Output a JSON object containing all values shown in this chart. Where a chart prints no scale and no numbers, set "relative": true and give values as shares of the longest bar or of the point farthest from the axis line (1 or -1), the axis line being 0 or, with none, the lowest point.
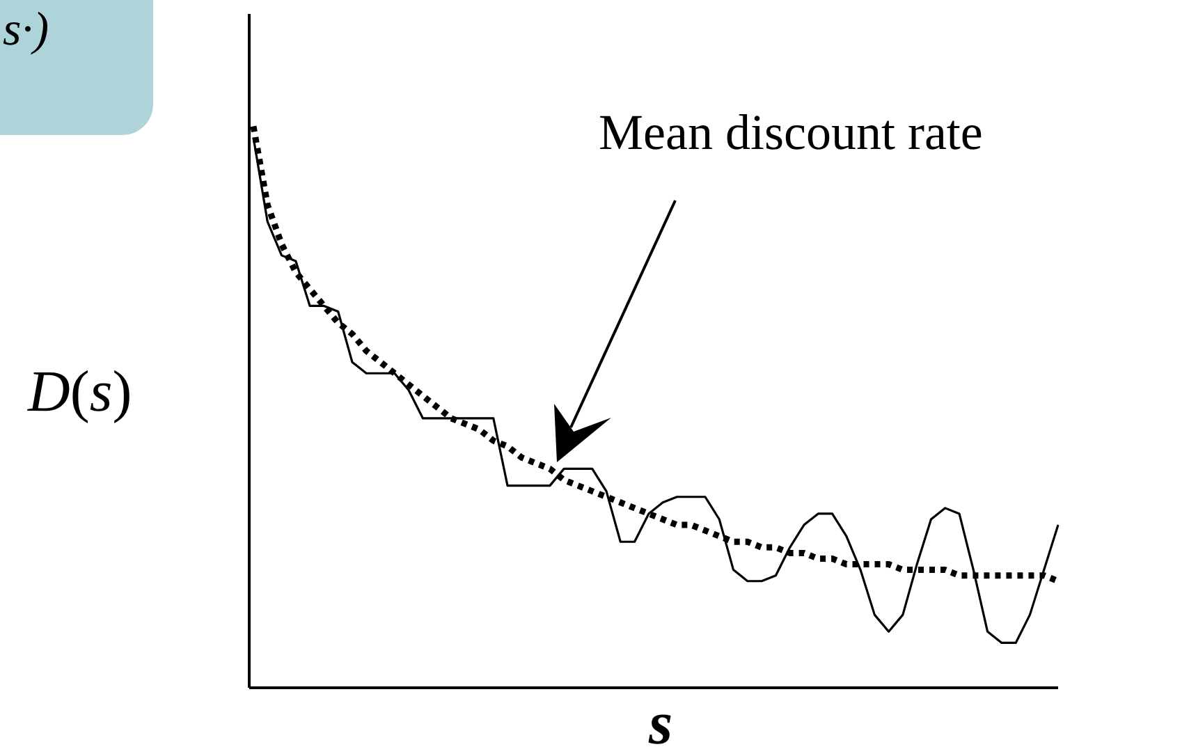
{
  "chart_data": {
    "type": "line",
    "relative": true,
    "xlabel": "s",
    "ylabel": "D(s)",
    "marker": "none",
    "legend": false,
    "grid": false,
    "tick_labels": false,
    "annotations": [
      "Mean discount rate",
      "s·)"
    ],
    "categories": [
      null,
      null,
      null,
      null,
      null,
      null,
      null,
      null,
      null,
      null,
      null,
      null,
      null,
      null,
      null,
      null,
      null,
      null,
      null,
      null,
      null,
      null,
      null,
      null,
      null,
      null,
      null,
      null,
      null,
      null,
      null,
      null,
      null,
      null,
      null,
      null,
      null,
      null,
      null,
      null,
      null,
      null,
      null,
      null,
      null,
      null,
      null,
      null,
      null,
      null,
      null,
      null,
      null,
      null,
      null,
      null,
      null,
      null
    ],
    "series": [
      {
        "color": "#000000",
        "line_style": "solid",
        "values": [
          0.98,
          0.83,
          0.77,
          0.76,
          0.68,
          0.68,
          0.67,
          0.58,
          0.56,
          0.56,
          0.56,
          0.53,
          0.48,
          0.48,
          0.48,
          0.48,
          0.48,
          0.48,
          0.36,
          0.36,
          0.36,
          0.36,
          0.39,
          0.39,
          0.39,
          0.35,
          0.26,
          0.26,
          0.31,
          0.33,
          0.34,
          0.34,
          0.34,
          0.3,
          0.21,
          0.19,
          0.19,
          0.2,
          0.25,
          0.29,
          0.31,
          0.31,
          0.27,
          0.21,
          0.13,
          0.1,
          0.13,
          0.22,
          0.3,
          0.32,
          0.31,
          0.21,
          0.1,
          0.08,
          0.08,
          0.13,
          0.21,
          0.29
        ]
      },
      {
        "color": "#000000",
        "line_style": "dotted",
        "values": [
          1,
          0.86,
          0.79,
          0.74,
          0.71,
          0.68,
          0.65,
          0.63,
          0.6,
          0.58,
          0.56,
          0.54,
          0.52,
          0.5,
          0.48,
          0.47,
          0.46,
          0.44,
          0.43,
          0.41,
          0.4,
          0.39,
          0.37,
          0.36,
          0.35,
          0.34,
          0.33,
          0.32,
          0.31,
          0.3,
          0.29,
          0.29,
          0.28,
          0.27,
          0.26,
          0.26,
          0.25,
          0.25,
          0.24,
          0.24,
          0.23,
          0.23,
          0.22,
          0.22,
          0.22,
          0.22,
          0.21,
          0.21,
          0.21,
          0.21,
          0.2,
          0.2,
          0.2,
          0.2,
          0.2,
          0.2,
          0.2,
          0.19
        ]
      }
    ]
  }
}
